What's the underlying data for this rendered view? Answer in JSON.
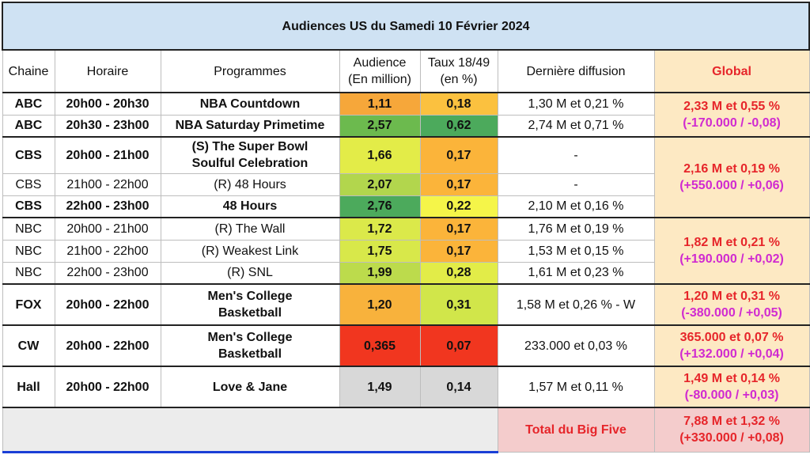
{
  "title": "Audiences US du Samedi 10 Février 2024",
  "headers": {
    "chaine": "Chaine",
    "horaire": "Horaire",
    "programmes": "Programmes",
    "audience_l1": "Audience",
    "audience_l2": "(En million)",
    "taux_l1": "Taux 18/49",
    "taux_l2": "(en %)",
    "derniere": "Dernière diffusion",
    "global": "Global"
  },
  "rows": [
    {
      "chaine": "ABC",
      "horaire": "20h00 - 20h30",
      "prog": "NBA Countdown",
      "aud": "1,11",
      "taux": "0,18",
      "last": "1,30 M et 0,21 %",
      "bold": true,
      "aud_color": "#f6a73a",
      "taux_color": "#fbc13f"
    },
    {
      "chaine": "ABC",
      "horaire": "20h30 - 23h00",
      "prog": "NBA Saturday Primetime",
      "aud": "2,57",
      "taux": "0,62",
      "last": "2,74 M et 0,71 %",
      "bold": true,
      "aud_color": "#6cba4e",
      "taux_color": "#4caa5c"
    },
    {
      "chaine": "CBS",
      "horaire": "20h00 - 21h00",
      "prog_l1": "(S) The Super Bowl",
      "prog_l2": "Soulful Celebration",
      "aud": "1,66",
      "taux": "0,17",
      "last": "-",
      "bold": true,
      "aud_color": "#e3ec48",
      "taux_color": "#fbb43a"
    },
    {
      "chaine": "CBS",
      "horaire": "21h00 - 22h00",
      "prog": "(R) 48 Hours",
      "aud": "2,07",
      "taux": "0,17",
      "last": "-",
      "bold": false,
      "aud_color": "#b2d64d",
      "taux_color": "#fbb43a"
    },
    {
      "chaine": "CBS",
      "horaire": "22h00 - 23h00",
      "prog": "48 Hours",
      "aud": "2,76",
      "taux": "0,22",
      "last": "2,10 M et 0,16 %",
      "bold": true,
      "aud_color": "#4caa5c",
      "taux_color": "#f5f549"
    },
    {
      "chaine": "NBC",
      "horaire": "20h00 - 21h00",
      "prog": "(R) The Wall",
      "aud": "1,72",
      "taux": "0,17",
      "last": "1,76 M et 0,19 %",
      "bold": false,
      "aud_color": "#dbe94a",
      "taux_color": "#fbb43a"
    },
    {
      "chaine": "NBC",
      "horaire": "21h00 - 22h00",
      "prog": "(R) Weakest Link",
      "aud": "1,75",
      "taux": "0,17",
      "last": "1,53 M et 0,15 %",
      "bold": false,
      "aud_color": "#d8e84a",
      "taux_color": "#fbb43a"
    },
    {
      "chaine": "NBC",
      "horaire": "22h00 - 23h00",
      "prog": "(R) SNL",
      "aud": "1,99",
      "taux": "0,28",
      "last": "1,61 M et 0,23 %",
      "bold": false,
      "aud_color": "#bcdb4c",
      "taux_color": "#e2ec48"
    },
    {
      "chaine": "FOX",
      "horaire": "20h00 - 22h00",
      "prog_l1": "Men's College",
      "prog_l2": "Basketball",
      "aud": "1,20",
      "taux": "0,31",
      "last": "1,58 M et 0,26 % - W",
      "bold": true,
      "aud_color": "#f8b23c",
      "taux_color": "#d1e64a"
    },
    {
      "chaine": "CW",
      "horaire": "20h00 - 22h00",
      "prog_l1": "Men's College",
      "prog_l2": "Basketball",
      "aud": "0,365",
      "taux": "0,07",
      "last": "233.000 et 0,03 %",
      "bold": true,
      "aud_color": "#f1361f",
      "taux_color": "#f1361f"
    },
    {
      "chaine": "Hall",
      "horaire": "20h00 - 22h00",
      "prog": "Love & Jane",
      "aud": "1,49",
      "taux": "0,14",
      "last": "1,57 M et 0,11 %",
      "bold": true,
      "aud_color": "#d8d8d8",
      "taux_color": "#d8d8d8"
    }
  ],
  "globals": {
    "abc_l1": "2,33 M et 0,55 %",
    "abc_l2": "(-170.000 / -0,08)",
    "cbs_l1": "2,16 M et 0,19 %",
    "cbs_l2": "(+550.000 / +0,06)",
    "nbc_l1": "1,82 M et 0,21 %",
    "nbc_l2": "(+190.000 / +0,02)",
    "fox_l1": "1,20 M et 0,31 %",
    "fox_l2": "(-380.000 / +0,05)",
    "cw_l1": "365.000 et 0,07 %",
    "cw_l2": "(+132.000 / +0,04)",
    "hall_l1": "1,49 M et 0,14 %",
    "hall_l2": "(-80.000 / +0,03)"
  },
  "footer": {
    "label": "Total du Big Five",
    "total_l1": "7,88 M et 1,32 %",
    "total_l2": "(+330.000 / +0,08)"
  }
}
